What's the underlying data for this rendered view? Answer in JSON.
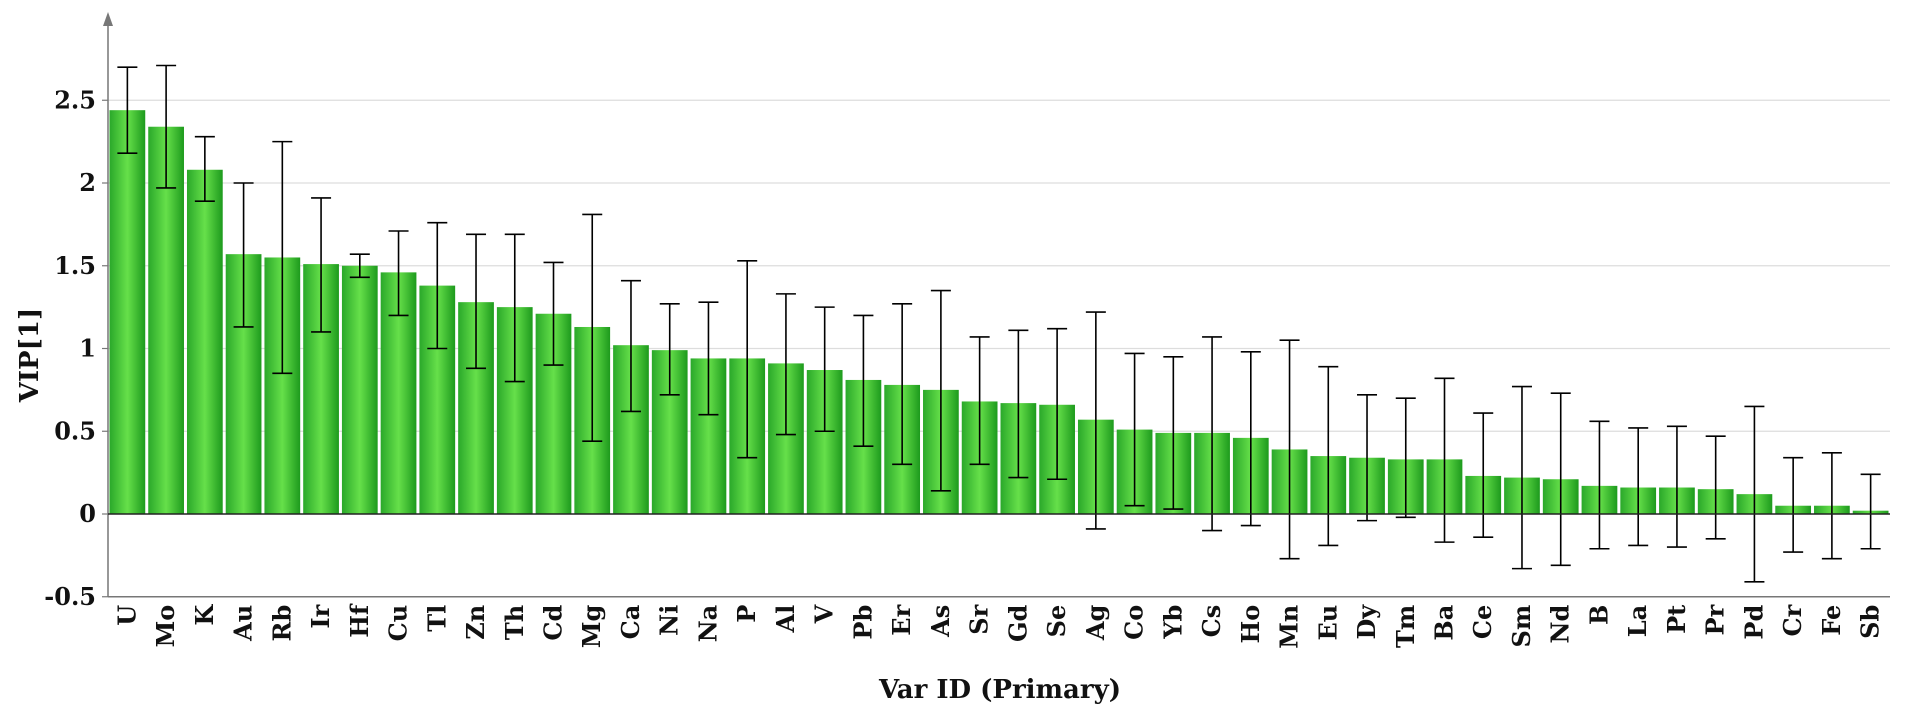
{
  "chart_data": {
    "type": "bar",
    "title": "",
    "xlabel": "Var ID (Primary)",
    "ylabel": "VIP[1]",
    "ylim": [
      -0.5,
      3.0
    ],
    "yticks": [
      -0.5,
      0,
      0.5,
      1,
      1.5,
      2,
      2.5
    ],
    "ytick_labels": [
      "-0.5",
      "0",
      "0.5",
      "1",
      "1.5",
      "2",
      "2.5"
    ],
    "grid": "horizontal",
    "legend": "none",
    "colors": {
      "bar_light": "#66e04a",
      "bar_dark": "#1d9a1d",
      "error_bar": "#000000",
      "grid": "#dddddd",
      "axis": "#777777"
    },
    "categories": [
      "U",
      "Mo",
      "K",
      "Au",
      "Rb",
      "Ir",
      "Hf",
      "Cu",
      "Tl",
      "Zn",
      "Th",
      "Cd",
      "Mg",
      "Ca",
      "Ni",
      "Na",
      "P",
      "Al",
      "V",
      "Pb",
      "Er",
      "As",
      "Sr",
      "Gd",
      "Se",
      "Ag",
      "Co",
      "Yb",
      "Cs",
      "Ho",
      "Mn",
      "Eu",
      "Dy",
      "Tm",
      "Ba",
      "Ce",
      "Sm",
      "Nd",
      "B",
      "La",
      "Pt",
      "Pr",
      "Pd",
      "Cr",
      "Fe",
      "Sb"
    ],
    "values": [
      2.44,
      2.34,
      2.08,
      1.57,
      1.55,
      1.51,
      1.5,
      1.46,
      1.38,
      1.28,
      1.25,
      1.21,
      1.13,
      1.02,
      0.99,
      0.94,
      0.94,
      0.91,
      0.87,
      0.81,
      0.78,
      0.75,
      0.68,
      0.67,
      0.66,
      0.57,
      0.51,
      0.49,
      0.49,
      0.46,
      0.39,
      0.35,
      0.34,
      0.33,
      0.33,
      0.23,
      0.22,
      0.21,
      0.17,
      0.16,
      0.16,
      0.15,
      0.12,
      0.05,
      0.05,
      0.02
    ],
    "error_low": [
      2.18,
      1.97,
      1.89,
      1.13,
      0.85,
      1.1,
      1.43,
      1.2,
      1.0,
      0.88,
      0.8,
      0.9,
      0.44,
      0.62,
      0.72,
      0.6,
      0.34,
      0.48,
      0.5,
      0.41,
      0.3,
      0.14,
      0.3,
      0.22,
      0.21,
      -0.09,
      0.05,
      0.03,
      -0.1,
      -0.07,
      -0.27,
      -0.19,
      -0.04,
      -0.02,
      -0.17,
      -0.14,
      -0.33,
      -0.31,
      -0.21,
      -0.19,
      -0.2,
      -0.15,
      -0.41,
      -0.23,
      -0.27,
      -0.21
    ],
    "error_high": [
      2.7,
      2.71,
      2.28,
      2.0,
      2.25,
      1.91,
      1.57,
      1.71,
      1.76,
      1.69,
      1.69,
      1.52,
      1.81,
      1.41,
      1.27,
      1.28,
      1.53,
      1.33,
      1.25,
      1.2,
      1.27,
      1.35,
      1.07,
      1.11,
      1.12,
      1.22,
      0.97,
      0.95,
      1.07,
      0.98,
      1.05,
      0.89,
      0.72,
      0.7,
      0.82,
      0.61,
      0.77,
      0.73,
      0.56,
      0.52,
      0.53,
      0.47,
      0.65,
      0.34,
      0.37,
      0.24
    ]
  }
}
